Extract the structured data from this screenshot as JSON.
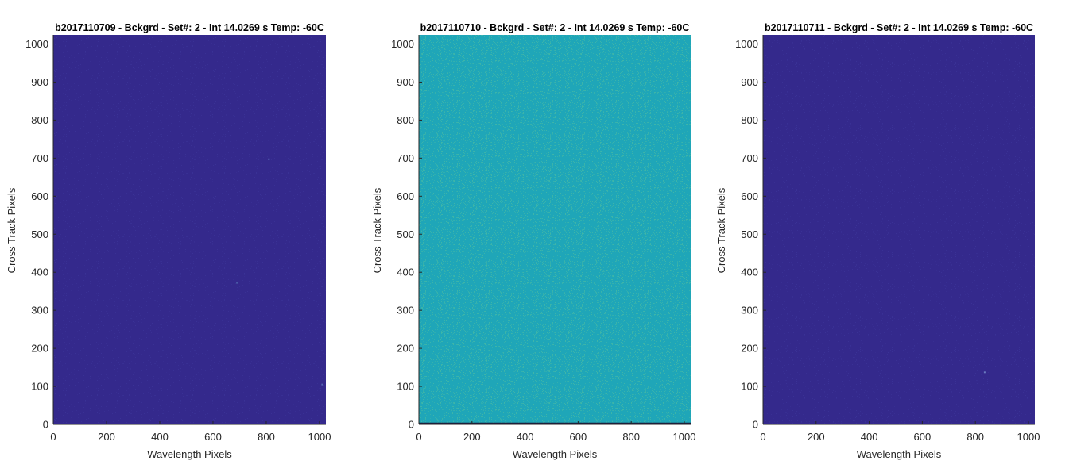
{
  "chart_data": [
    {
      "type": "heatmap",
      "title": "b2017110709 - Bckgrd - Set#: 2 - Int 14.0269 s Temp: -60C",
      "xlabel": "Wavelength Pixels",
      "ylabel": "Cross Track Pixels",
      "xlim": [
        0,
        1024
      ],
      "ylim": [
        0,
        1024
      ],
      "xticks": [
        0,
        200,
        400,
        600,
        800,
        1000
      ],
      "yticks": [
        0,
        100,
        200,
        300,
        400,
        500,
        600,
        700,
        800,
        900,
        1000
      ],
      "fill_color": "#34298c",
      "noise_color": "#3a3296",
      "bottom_line": false,
      "outliers": [
        {
          "x": 810,
          "y": 697,
          "color": "#5a6ab8"
        },
        {
          "x": 690,
          "y": 372,
          "color": "#4a5aa8"
        },
        {
          "x": 1010,
          "y": 105,
          "color": "#5565b0"
        }
      ]
    },
    {
      "type": "heatmap",
      "title": "b2017110710 - Bckgrd - Set#: 2 - Int 14.0269 s Temp: -60C",
      "xlabel": "Wavelength Pixels",
      "ylabel": "Cross Track Pixels",
      "xlim": [
        0,
        1024
      ],
      "ylim": [
        0,
        1024
      ],
      "xticks": [
        0,
        200,
        400,
        600,
        800,
        1000
      ],
      "yticks": [
        0,
        100,
        200,
        300,
        400,
        500,
        600,
        700,
        800,
        900,
        1000
      ],
      "fill_color": "#1fa6b8",
      "noise_color": "#3fb6a8",
      "bottom_line": true,
      "bottom_line_color": "#1f1f3a",
      "outliers": []
    },
    {
      "type": "heatmap",
      "title": "b2017110711 - Bckgrd - Set#: 2 - Int 14.0269 s Temp: -60C",
      "xlabel": "Wavelength Pixels",
      "ylabel": "Cross Track Pixels",
      "xlim": [
        0,
        1024
      ],
      "ylim": [
        0,
        1024
      ],
      "xticks": [
        0,
        200,
        400,
        600,
        800,
        1000
      ],
      "yticks": [
        0,
        100,
        200,
        300,
        400,
        500,
        600,
        700,
        800,
        900,
        1000
      ],
      "fill_color": "#34298c",
      "noise_color": "#3a3296",
      "bottom_line": false,
      "outliers": [
        {
          "x": 835,
          "y": 137,
          "color": "#6a7ac0"
        }
      ]
    }
  ]
}
